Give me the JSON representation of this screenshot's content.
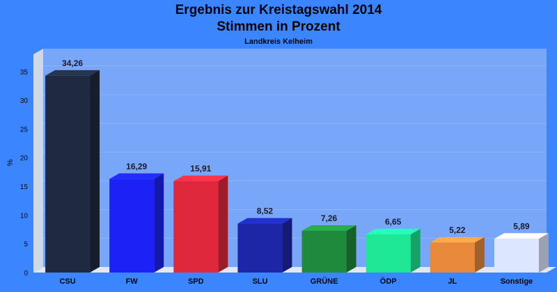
{
  "chart_data": {
    "type": "bar",
    "title": "Ergebnis zur Kreistagswahl 2014",
    "title_line2": "Stimmen in Prozent",
    "subtitle": "Landkreis Kelheim",
    "ylabel": "%",
    "xlabel": "",
    "ylim": [
      0,
      38
    ],
    "yticks": [
      0,
      5,
      10,
      15,
      20,
      25,
      30,
      35
    ],
    "grid": true,
    "categories": [
      "CSU",
      "FW",
      "SPD",
      "SLU",
      "GRÜNE",
      "ÖDP",
      "JL",
      "Sonstige"
    ],
    "values": [
      34.26,
      16.29,
      15.91,
      8.52,
      7.26,
      6.65,
      5.22,
      5.89
    ],
    "value_labels": [
      "34,26",
      "16,29",
      "15,91",
      "8,52",
      "7,26",
      "6,65",
      "5,22",
      "5,89"
    ],
    "colors": [
      "#1f2a40",
      "#1c22f5",
      "#e0283c",
      "#1c26a6",
      "#1f8a3c",
      "#1ee896",
      "#e8893c",
      "#dde6ff"
    ]
  }
}
